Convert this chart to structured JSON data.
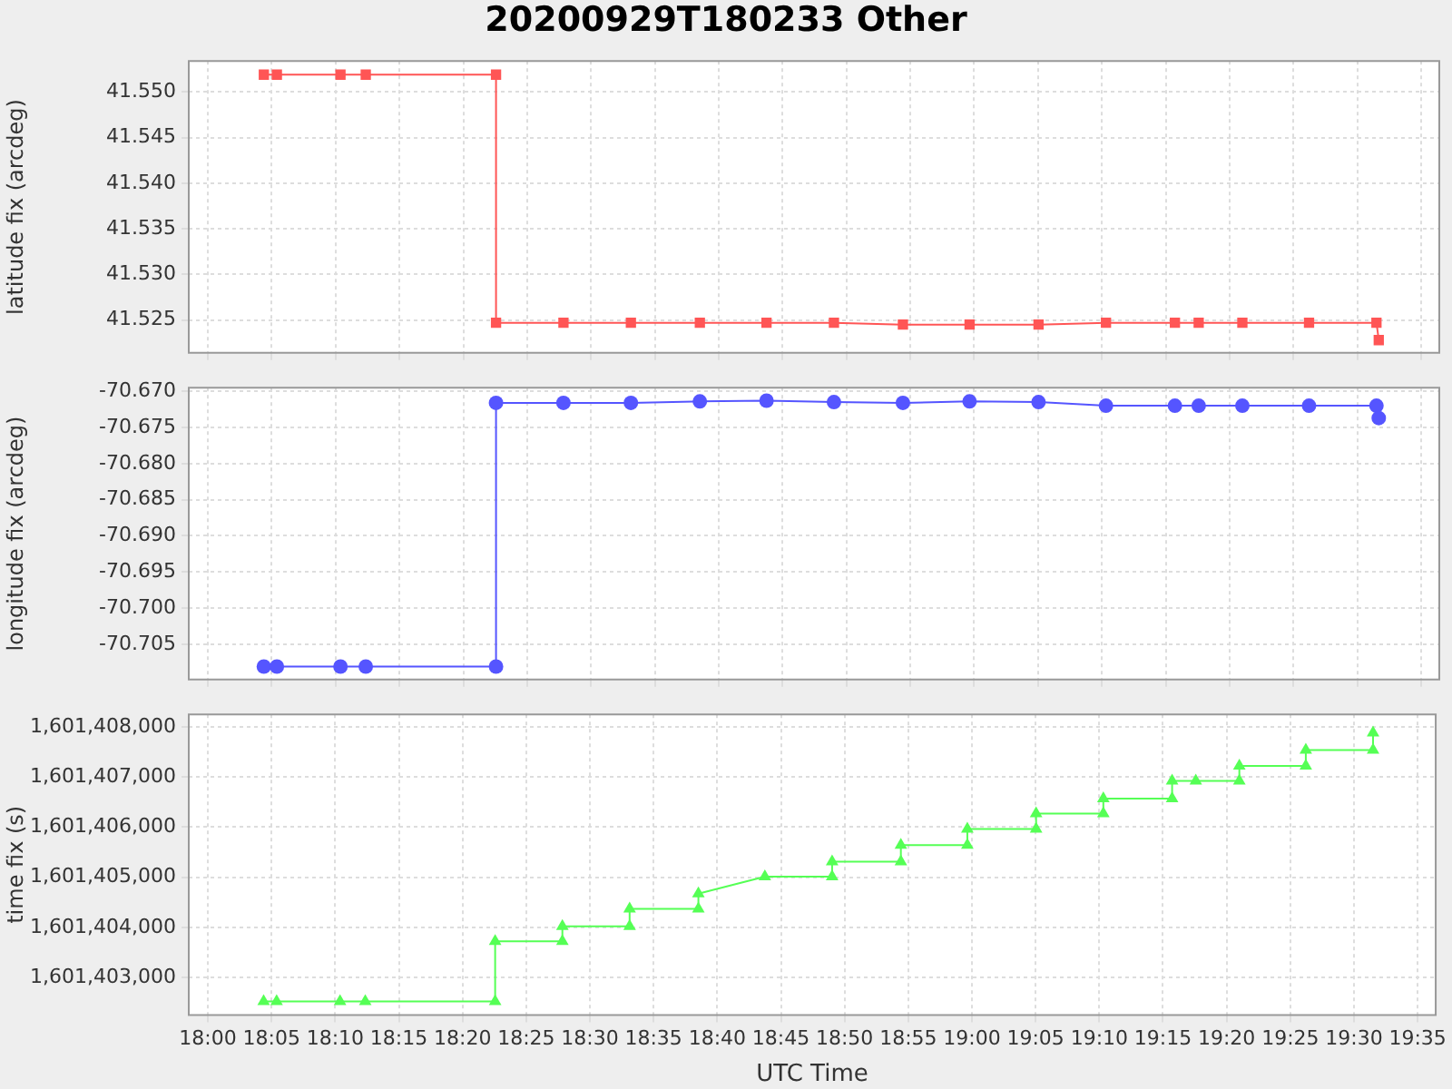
{
  "chart_data": [
    {
      "type": "line",
      "title": "20200929T180233 Other",
      "ylabel": "latitude fix (arcdeg)",
      "marker": "square",
      "grid": true,
      "tick_labels": "y",
      "xlim": [
        17.975,
        19.607
      ],
      "xticks": [
        {
          "value": 18.0,
          "label": null
        },
        {
          "value": 18.0833,
          "label": null
        },
        {
          "value": 18.1667,
          "label": null
        },
        {
          "value": 18.25,
          "label": null
        },
        {
          "value": 18.3333,
          "label": null
        },
        {
          "value": 18.4167,
          "label": null
        },
        {
          "value": 18.5,
          "label": null
        },
        {
          "value": 18.5833,
          "label": null
        },
        {
          "value": 18.6667,
          "label": null
        },
        {
          "value": 18.75,
          "label": null
        },
        {
          "value": 18.8333,
          "label": null
        },
        {
          "value": 18.9167,
          "label": null
        },
        {
          "value": 19.0,
          "label": null
        },
        {
          "value": 19.0833,
          "label": null
        },
        {
          "value": 19.1667,
          "label": null
        },
        {
          "value": 19.25,
          "label": null
        },
        {
          "value": 19.3333,
          "label": null
        },
        {
          "value": 19.4167,
          "label": null
        },
        {
          "value": 19.5,
          "label": null
        },
        {
          "value": 19.5833,
          "label": null
        }
      ],
      "ylim": [
        41.5214,
        41.5534
      ],
      "yticks": [
        {
          "value": 41.525,
          "label": "41.525"
        },
        {
          "value": 41.53,
          "label": "41.530"
        },
        {
          "value": 41.535,
          "label": "41.535"
        },
        {
          "value": 41.54,
          "label": "41.540"
        },
        {
          "value": 41.545,
          "label": "41.545"
        },
        {
          "value": 41.55,
          "label": "41.550"
        }
      ],
      "series": [
        {
          "color": "#ff5555",
          "x": [
            18.073,
            18.09,
            18.173,
            18.206,
            18.376,
            18.376,
            18.464,
            18.552,
            18.642,
            18.729,
            18.817,
            18.907,
            18.994,
            19.084,
            19.172,
            19.262,
            19.293,
            19.35,
            19.437,
            19.525,
            19.528
          ],
          "values": [
            41.5519,
            41.5519,
            41.5519,
            41.5519,
            41.5519,
            41.5247,
            41.5247,
            41.5247,
            41.5247,
            41.5247,
            41.5247,
            41.5245,
            41.5245,
            41.5245,
            41.5247,
            41.5247,
            41.5247,
            41.5247,
            41.5247,
            41.5247,
            41.5228
          ]
        }
      ]
    },
    {
      "type": "line",
      "ylabel": "longitude fix (arcdeg)",
      "marker": "circle",
      "grid": true,
      "tick_labels": "y",
      "xlim": [
        17.975,
        19.607
      ],
      "xticks": [
        {
          "value": 18.0,
          "label": null
        },
        {
          "value": 18.0833,
          "label": null
        },
        {
          "value": 18.1667,
          "label": null
        },
        {
          "value": 18.25,
          "label": null
        },
        {
          "value": 18.3333,
          "label": null
        },
        {
          "value": 18.4167,
          "label": null
        },
        {
          "value": 18.5,
          "label": null
        },
        {
          "value": 18.5833,
          "label": null
        },
        {
          "value": 18.6667,
          "label": null
        },
        {
          "value": 18.75,
          "label": null
        },
        {
          "value": 18.8333,
          "label": null
        },
        {
          "value": 18.9167,
          "label": null
        },
        {
          "value": 19.0,
          "label": null
        },
        {
          "value": 19.0833,
          "label": null
        },
        {
          "value": 19.1667,
          "label": null
        },
        {
          "value": 19.25,
          "label": null
        },
        {
          "value": 19.3333,
          "label": null
        },
        {
          "value": 19.4167,
          "label": null
        },
        {
          "value": 19.5,
          "label": null
        },
        {
          "value": 19.5833,
          "label": null
        }
      ],
      "ylim": [
        -70.7099,
        -70.6695
      ],
      "yticks": [
        {
          "value": -70.705,
          "label": "-70.705"
        },
        {
          "value": -70.7,
          "label": "-70.700"
        },
        {
          "value": -70.695,
          "label": "-70.695"
        },
        {
          "value": -70.69,
          "label": "-70.690"
        },
        {
          "value": -70.685,
          "label": "-70.685"
        },
        {
          "value": -70.68,
          "label": "-70.680"
        },
        {
          "value": -70.675,
          "label": "-70.675"
        },
        {
          "value": -70.67,
          "label": "-70.670"
        }
      ],
      "series": [
        {
          "color": "#5555ff",
          "x": [
            18.073,
            18.09,
            18.173,
            18.206,
            18.376,
            18.376,
            18.464,
            18.552,
            18.642,
            18.729,
            18.817,
            18.907,
            18.994,
            19.084,
            19.172,
            19.262,
            19.293,
            19.35,
            19.437,
            19.525,
            19.528
          ],
          "values": [
            -70.7081,
            -70.7081,
            -70.7081,
            -70.7081,
            -70.7081,
            -70.6716,
            -70.6716,
            -70.6716,
            -70.6714,
            -70.6713,
            -70.6715,
            -70.6716,
            -70.6714,
            -70.6715,
            -70.672,
            -70.672,
            -70.672,
            -70.672,
            -70.672,
            -70.672,
            -70.6737
          ]
        }
      ]
    },
    {
      "type": "line",
      "ylabel": "time fix (s)",
      "xlabel": "UTC Time",
      "marker": "triangle",
      "grid": true,
      "xlim": [
        17.975,
        19.607
      ],
      "xticks": [
        {
          "value": 18.0,
          "label": "18:00"
        },
        {
          "value": 18.0833,
          "label": "18:05"
        },
        {
          "value": 18.1667,
          "label": "18:10"
        },
        {
          "value": 18.25,
          "label": "18:15"
        },
        {
          "value": 18.3333,
          "label": "18:20"
        },
        {
          "value": 18.4167,
          "label": "18:25"
        },
        {
          "value": 18.5,
          "label": "18:30"
        },
        {
          "value": 18.5833,
          "label": "18:35"
        },
        {
          "value": 18.6667,
          "label": "18:40"
        },
        {
          "value": 18.75,
          "label": "18:45"
        },
        {
          "value": 18.8333,
          "label": "18:50"
        },
        {
          "value": 18.9167,
          "label": "18:55"
        },
        {
          "value": 19.0,
          "label": "19:00"
        },
        {
          "value": 19.0833,
          "label": "19:05"
        },
        {
          "value": 19.1667,
          "label": "19:10"
        },
        {
          "value": 19.25,
          "label": "19:15"
        },
        {
          "value": 19.3333,
          "label": "19:20"
        },
        {
          "value": 19.4167,
          "label": "19:25"
        },
        {
          "value": 19.5,
          "label": "19:30"
        },
        {
          "value": 19.5833,
          "label": "19:35"
        }
      ],
      "ylim": [
        1601402250,
        1601408250
      ],
      "yticks": [
        {
          "value": 1601403000,
          "label": "1,601,403,000"
        },
        {
          "value": 1601404000,
          "label": "1,601,404,000"
        },
        {
          "value": 1601405000,
          "label": "1,601,405,000"
        },
        {
          "value": 1601406000,
          "label": "1,601,406,000"
        },
        {
          "value": 1601407000,
          "label": "1,601,407,000"
        },
        {
          "value": 1601408000,
          "label": "1,601,408,000"
        }
      ],
      "series": [
        {
          "color": "#55ff55",
          "x": [
            18.073,
            18.09,
            18.173,
            18.206,
            18.376,
            18.376,
            18.464,
            18.464,
            18.552,
            18.552,
            18.642,
            18.642,
            18.729,
            18.817,
            18.817,
            18.907,
            18.907,
            18.994,
            18.994,
            19.084,
            19.084,
            19.172,
            19.172,
            19.262,
            19.262,
            19.293,
            19.35,
            19.35,
            19.437,
            19.437,
            19.525,
            19.525
          ],
          "values": [
            1601402520,
            1601402520,
            1601402520,
            1601402520,
            1601402520,
            1601403720,
            1601403720,
            1601404020,
            1601404020,
            1601404370,
            1601404370,
            1601404670,
            1601405010,
            1601405010,
            1601405310,
            1601405310,
            1601405640,
            1601405640,
            1601405960,
            1601405960,
            1601406270,
            1601406270,
            1601406570,
            1601406570,
            1601406920,
            1601406920,
            1601406920,
            1601407220,
            1601407220,
            1601407540,
            1601407540,
            1601407880
          ]
        }
      ]
    }
  ]
}
